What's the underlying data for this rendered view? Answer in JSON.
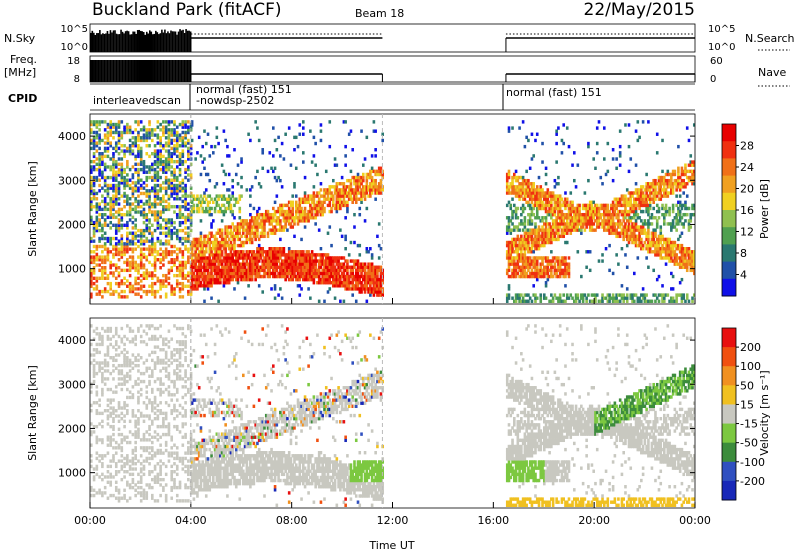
{
  "header": {
    "station": "Buckland Park (fitACF)",
    "beam": "Beam 18",
    "date": "22/May/2015"
  },
  "left_labels": {
    "nsky": "N.Sky",
    "freq_line1": "Freq.",
    "freq_line2": "[MHz]",
    "cpid": "CPID"
  },
  "right_labels": {
    "nsearch": "N.Search",
    "nave": "Nave"
  },
  "strip_ticks": {
    "nsky_top": "10^5",
    "nsky_bottom": "10^0",
    "freq_top": "18",
    "freq_bottom": "8",
    "nsearch_top": "10^5",
    "nsearch_bottom": "10^0",
    "nave_top": "60",
    "nave_bottom": "0"
  },
  "cpid_segments": [
    {
      "start_h": 0.0,
      "text": "interleavedscan"
    },
    {
      "start_h": 4.0,
      "text": "normal (fast) 151"
    },
    {
      "start_h": 4.0,
      "text": "-nowdsp-2502"
    },
    {
      "start_h": 16.5,
      "text": "normal (fast) 151"
    }
  ],
  "chart_data": [
    {
      "type": "heatmap",
      "name": "power",
      "ylabel": "Slant Range [km]",
      "ylim": [
        200,
        4500
      ],
      "yticks": [
        1000,
        2000,
        3000,
        4000
      ],
      "colorbar_label": "Power [dB]",
      "colorbar_ticks": [
        4,
        8,
        12,
        16,
        20,
        24,
        28
      ],
      "colorbar_colors": [
        "#1010e8",
        "#2050a8",
        "#2a7870",
        "#50a050",
        "#90c050",
        "#f0d020",
        "#f0a020",
        "#f07018",
        "#f03010",
        "#e80000"
      ],
      "data_coverage": [
        [
          0.0,
          11.6
        ],
        [
          16.5,
          24.0
        ]
      ]
    },
    {
      "type": "heatmap",
      "name": "velocity",
      "ylabel": "Slant Range [km]",
      "xlabel": "Time UT",
      "ylim": [
        200,
        4500
      ],
      "yticks": [
        1000,
        2000,
        3000,
        4000
      ],
      "xticks": [
        "00:00",
        "04:00",
        "08:00",
        "12:00",
        "16:00",
        "20:00",
        "00:00"
      ],
      "xlim_hours": [
        0,
        24
      ],
      "colorbar_label": "Velocity [m s⁻¹]",
      "colorbar_ticks": [
        "200",
        "100",
        "50",
        "15",
        "-15",
        "-50",
        "-100",
        "-200"
      ],
      "colorbar_colors": [
        "#1828b8",
        "#3050c0",
        "#3c8c3c",
        "#7cc840",
        "#c8c8c0",
        "#f0c020",
        "#f09020",
        "#f05010",
        "#e81010"
      ],
      "data_coverage": [
        [
          0.0,
          11.6
        ],
        [
          16.5,
          24.0
        ]
      ]
    }
  ]
}
